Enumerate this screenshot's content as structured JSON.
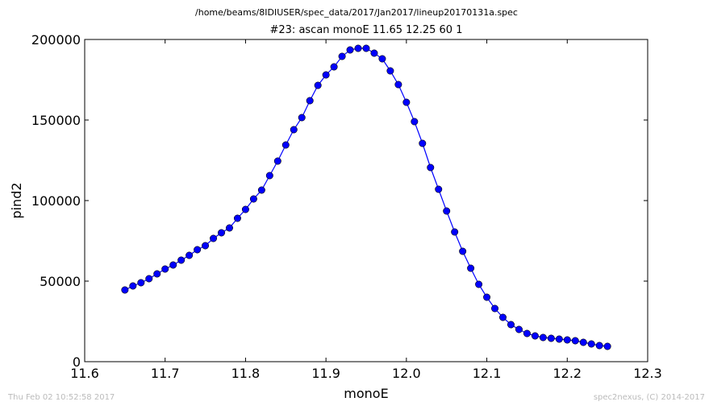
{
  "header": {
    "file_path": "/home/beams/8IDIUSER/spec_data/2017/Jan2017/lineup20170131a.spec"
  },
  "footer": {
    "timestamp": "Thu Feb 02 10:52:58 2017",
    "credit": "spec2nexus, (C) 2014-2017"
  },
  "chart_data": {
    "type": "line",
    "title": "#23: ascan  monoE 11.65 12.25  60 1",
    "xlabel": "monoE",
    "ylabel": "pind2",
    "xlim": [
      11.6,
      12.3
    ],
    "ylim": [
      0,
      200000
    ],
    "xticks": [
      "11.6",
      "11.7",
      "11.8",
      "11.9",
      "12.0",
      "12.1",
      "12.2",
      "12.3"
    ],
    "yticks": [
      "0",
      "50000",
      "100000",
      "150000",
      "200000"
    ],
    "grid": false,
    "marker": "circle",
    "color": "#0000ff",
    "series": [
      {
        "x": [
          11.65,
          11.66,
          11.67,
          11.68,
          11.69,
          11.7,
          11.71,
          11.72,
          11.73,
          11.74,
          11.75,
          11.76,
          11.77,
          11.78,
          11.79,
          11.8,
          11.81,
          11.82,
          11.83,
          11.84,
          11.85,
          11.86,
          11.87,
          11.88,
          11.89,
          11.9,
          11.91,
          11.92,
          11.93,
          11.94,
          11.95,
          11.96,
          11.97,
          11.98,
          11.99,
          12.0,
          12.01,
          12.02,
          12.03,
          12.04,
          12.05,
          12.06,
          12.07,
          12.08,
          12.09,
          12.1,
          12.11,
          12.12,
          12.13,
          12.14,
          12.15,
          12.16,
          12.17,
          12.18,
          12.19,
          12.2,
          12.21,
          12.22,
          12.23,
          12.24,
          12.25
        ],
        "y": [
          44500,
          47000,
          49000,
          51500,
          54500,
          57500,
          60000,
          63000,
          66000,
          69500,
          72000,
          76500,
          80000,
          83000,
          89000,
          94500,
          101000,
          106500,
          115500,
          124500,
          134500,
          144000,
          151500,
          162000,
          171500,
          178000,
          183000,
          189500,
          193500,
          194500,
          194500,
          191500,
          188000,
          180500,
          172000,
          161000,
          149000,
          135500,
          120500,
          107000,
          93500,
          80500,
          68500,
          58000,
          48000,
          40000,
          33000,
          27500,
          23000,
          20000,
          17500,
          16000,
          15000,
          14500,
          14000,
          13500,
          13000,
          12000,
          11000,
          10000,
          9500
        ]
      }
    ]
  }
}
